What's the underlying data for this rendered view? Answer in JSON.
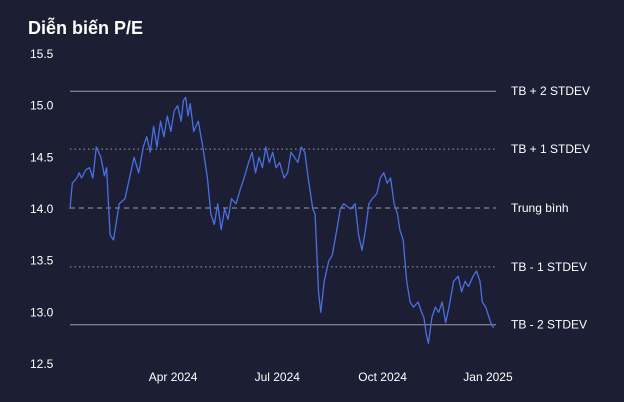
{
  "chart_data": {
    "type": "line",
    "title": "Diễn biến P/E",
    "xlabel": "",
    "ylabel": "",
    "ylim": [
      12.5,
      15.5
    ],
    "yticks": [
      12.5,
      13.0,
      13.5,
      14.0,
      14.5,
      15.0,
      15.5
    ],
    "ytick_labels": [
      "12.5",
      "13.0",
      "13.5",
      "14.0",
      "14.5",
      "15.0",
      "15.5"
    ],
    "xlim": [
      "2024-01-02",
      "2025-01-08"
    ],
    "xticks": [
      {
        "label": "Apr 2024",
        "date": "2024-04-01"
      },
      {
        "label": "Jul 2024",
        "date": "2024-07-01"
      },
      {
        "label": "Oct 2024",
        "date": "2024-10-01"
      },
      {
        "label": "Jan 2025",
        "date": "2025-01-01"
      }
    ],
    "grid": false,
    "line_color": "#4a6fe3",
    "reference_lines": [
      {
        "label": "TB + 2 STDEV",
        "value": 15.14,
        "style": "solid"
      },
      {
        "label": "TB + 1 STDEV",
        "value": 14.58,
        "style": "dotted"
      },
      {
        "label": "Trung bình",
        "value": 14.01,
        "style": "dashed"
      },
      {
        "label": "TB - 1 STDEV",
        "value": 13.44,
        "style": "dotted"
      },
      {
        "label": "TB - 2 STDEV",
        "value": 12.88,
        "style": "solid"
      }
    ],
    "series": [
      {
        "points": [
          [
            "2024-01-02",
            14.0
          ],
          [
            "2024-01-04",
            14.25
          ],
          [
            "2024-01-08",
            14.3
          ],
          [
            "2024-01-10",
            14.35
          ],
          [
            "2024-01-12",
            14.3
          ],
          [
            "2024-01-16",
            14.38
          ],
          [
            "2024-01-19",
            14.4
          ],
          [
            "2024-01-22",
            14.3
          ],
          [
            "2024-01-25",
            14.6
          ],
          [
            "2024-01-29",
            14.5
          ],
          [
            "2024-02-01",
            14.32
          ],
          [
            "2024-02-03",
            14.4
          ],
          [
            "2024-02-06",
            13.75
          ],
          [
            "2024-02-09",
            13.7
          ],
          [
            "2024-02-14",
            14.05
          ],
          [
            "2024-02-19",
            14.1
          ],
          [
            "2024-02-23",
            14.3
          ],
          [
            "2024-02-27",
            14.5
          ],
          [
            "2024-03-02",
            14.35
          ],
          [
            "2024-03-06",
            14.6
          ],
          [
            "2024-03-09",
            14.7
          ],
          [
            "2024-03-12",
            14.55
          ],
          [
            "2024-03-15",
            14.8
          ],
          [
            "2024-03-18",
            14.6
          ],
          [
            "2024-03-21",
            14.85
          ],
          [
            "2024-03-24",
            14.7
          ],
          [
            "2024-03-27",
            14.9
          ],
          [
            "2024-03-30",
            14.75
          ],
          [
            "2024-04-02",
            14.95
          ],
          [
            "2024-04-05",
            15.0
          ],
          [
            "2024-04-08",
            14.85
          ],
          [
            "2024-04-10",
            15.05
          ],
          [
            "2024-04-12",
            15.08
          ],
          [
            "2024-04-14",
            14.9
          ],
          [
            "2024-04-16",
            15.02
          ],
          [
            "2024-04-19",
            14.75
          ],
          [
            "2024-04-23",
            14.85
          ],
          [
            "2024-04-27",
            14.6
          ],
          [
            "2024-05-01",
            14.3
          ],
          [
            "2024-05-04",
            13.95
          ],
          [
            "2024-05-07",
            13.85
          ],
          [
            "2024-05-10",
            14.05
          ],
          [
            "2024-05-13",
            13.8
          ],
          [
            "2024-05-16",
            14.0
          ],
          [
            "2024-05-19",
            13.9
          ],
          [
            "2024-05-22",
            14.1
          ],
          [
            "2024-05-26",
            14.05
          ],
          [
            "2024-05-30",
            14.2
          ],
          [
            "2024-06-02",
            14.3
          ],
          [
            "2024-06-06",
            14.45
          ],
          [
            "2024-06-09",
            14.55
          ],
          [
            "2024-06-12",
            14.35
          ],
          [
            "2024-06-15",
            14.5
          ],
          [
            "2024-06-18",
            14.4
          ],
          [
            "2024-06-21",
            14.6
          ],
          [
            "2024-06-24",
            14.45
          ],
          [
            "2024-06-27",
            14.55
          ],
          [
            "2024-06-30",
            14.4
          ],
          [
            "2024-07-03",
            14.45
          ],
          [
            "2024-07-07",
            14.3
          ],
          [
            "2024-07-10",
            14.35
          ],
          [
            "2024-07-13",
            14.55
          ],
          [
            "2024-07-16",
            14.5
          ],
          [
            "2024-07-19",
            14.45
          ],
          [
            "2024-07-22",
            14.6
          ],
          [
            "2024-07-25",
            14.55
          ],
          [
            "2024-07-28",
            14.3
          ],
          [
            "2024-08-01",
            14.0
          ],
          [
            "2024-08-03",
            13.95
          ],
          [
            "2024-08-06",
            13.2
          ],
          [
            "2024-08-08",
            13.0
          ],
          [
            "2024-08-11",
            13.3
          ],
          [
            "2024-08-15",
            13.5
          ],
          [
            "2024-08-18",
            13.55
          ],
          [
            "2024-08-22",
            13.8
          ],
          [
            "2024-08-25",
            14.0
          ],
          [
            "2024-08-28",
            14.05
          ],
          [
            "2024-09-03",
            14.0
          ],
          [
            "2024-09-07",
            14.05
          ],
          [
            "2024-09-10",
            13.75
          ],
          [
            "2024-09-13",
            13.6
          ],
          [
            "2024-09-16",
            13.8
          ],
          [
            "2024-09-19",
            14.05
          ],
          [
            "2024-09-22",
            14.1
          ],
          [
            "2024-09-26",
            14.15
          ],
          [
            "2024-09-29",
            14.3
          ],
          [
            "2024-10-02",
            14.35
          ],
          [
            "2024-10-05",
            14.25
          ],
          [
            "2024-10-08",
            14.3
          ],
          [
            "2024-10-11",
            14.05
          ],
          [
            "2024-10-14",
            13.95
          ],
          [
            "2024-10-16",
            13.8
          ],
          [
            "2024-10-19",
            13.7
          ],
          [
            "2024-10-22",
            13.3
          ],
          [
            "2024-10-25",
            13.1
          ],
          [
            "2024-10-28",
            13.05
          ],
          [
            "2024-11-01",
            13.1
          ],
          [
            "2024-11-04",
            13.0
          ],
          [
            "2024-11-06",
            12.95
          ],
          [
            "2024-11-08",
            12.8
          ],
          [
            "2024-11-10",
            12.7
          ],
          [
            "2024-11-13",
            12.95
          ],
          [
            "2024-11-16",
            13.05
          ],
          [
            "2024-11-19",
            13.0
          ],
          [
            "2024-11-22",
            13.1
          ],
          [
            "2024-11-25",
            12.9
          ],
          [
            "2024-11-28",
            13.05
          ],
          [
            "2024-12-02",
            13.3
          ],
          [
            "2024-12-06",
            13.35
          ],
          [
            "2024-12-09",
            13.2
          ],
          [
            "2024-12-12",
            13.3
          ],
          [
            "2024-12-15",
            13.25
          ],
          [
            "2024-12-19",
            13.35
          ],
          [
            "2024-12-22",
            13.4
          ],
          [
            "2024-12-25",
            13.3
          ],
          [
            "2024-12-27",
            13.1
          ],
          [
            "2024-12-30",
            13.05
          ],
          [
            "2025-01-02",
            12.95
          ],
          [
            "2025-01-04",
            12.88
          ],
          [
            "2025-01-06",
            12.85
          ]
        ]
      }
    ]
  }
}
